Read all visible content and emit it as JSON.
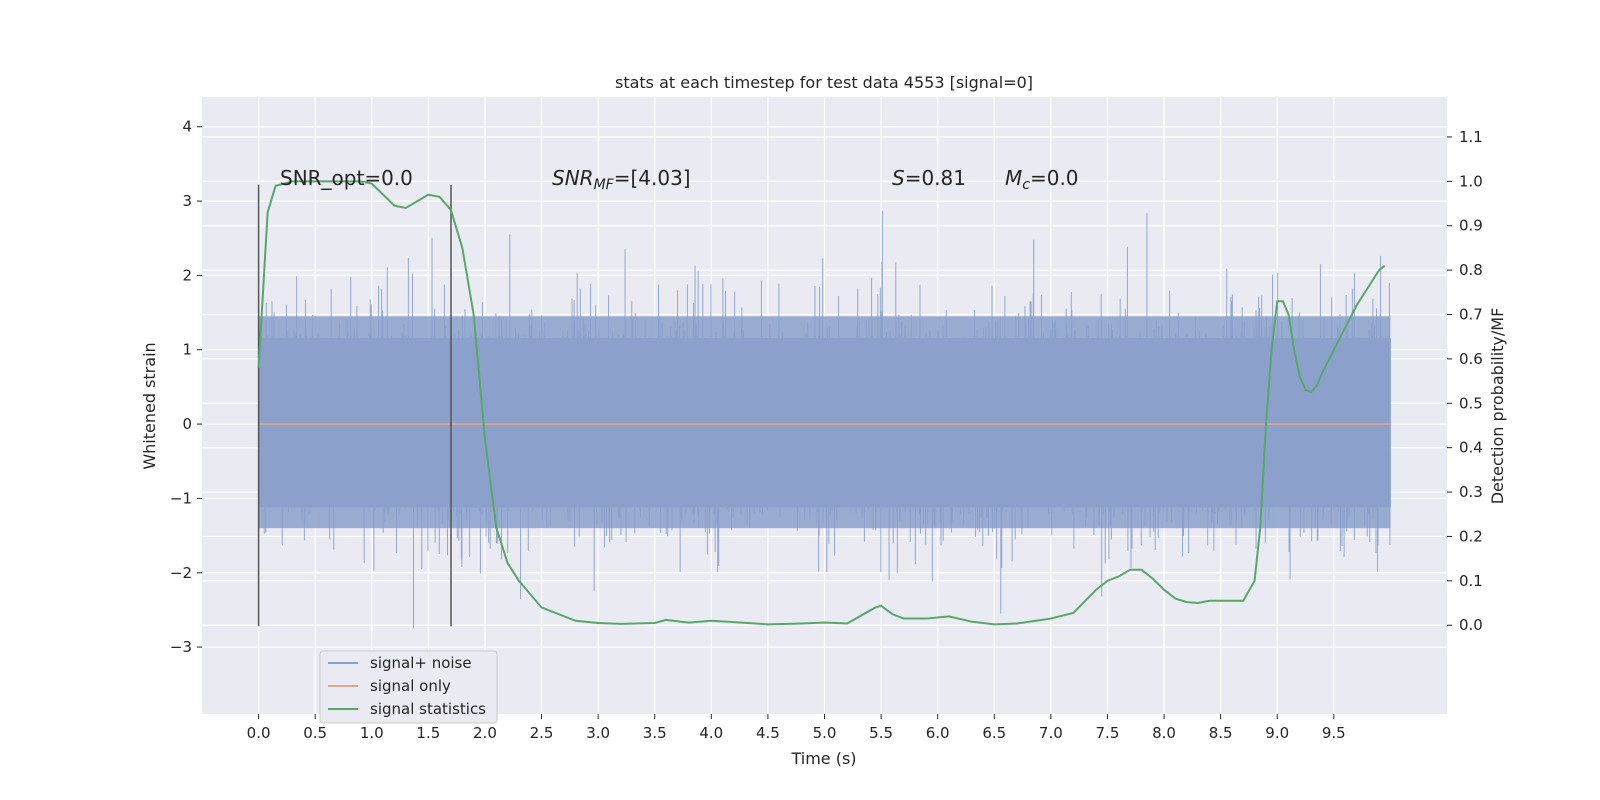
{
  "chart_data": {
    "type": "line",
    "title": "stats at each timestep for test data 4553 [signal=0]",
    "xlabel": "Time (s)",
    "ylabel": "Whitened strain",
    "ylabel_right": "Detection probability/MF",
    "xlim": [
      -0.5,
      10.5
    ],
    "ylim": [
      -3.9,
      4.4
    ],
    "ylim_right": [
      -0.2,
      1.19
    ],
    "x_ticks": [
      0.0,
      0.5,
      1.0,
      1.5,
      2.0,
      2.5,
      3.0,
      3.5,
      4.0,
      4.5,
      5.0,
      5.5,
      6.0,
      6.5,
      7.0,
      7.5,
      8.0,
      8.5,
      9.0,
      9.5
    ],
    "x_tick_labels": [
      "0.0",
      "0.5",
      "1.0",
      "1.5",
      "2.0",
      "2.5",
      "3.0",
      "3.5",
      "4.0",
      "4.5",
      "5.0",
      "5.5",
      "6.0",
      "6.5",
      "7.0",
      "7.5",
      "8.0",
      "8.5",
      "9.0",
      "9.5"
    ],
    "y_ticks": [
      4,
      3,
      2,
      1,
      0,
      -1,
      -2,
      -3
    ],
    "y_tick_labels": [
      "4",
      "3",
      "2",
      "1",
      "0",
      "−1",
      "−2",
      "−3"
    ],
    "y_right_ticks": [
      1.1,
      1.0,
      0.9,
      0.8,
      0.7,
      0.6,
      0.5,
      0.4,
      0.3,
      0.2,
      0.1,
      0.0
    ],
    "y_right_tick_labels": [
      "1.1",
      "1.0",
      "0.9",
      "0.8",
      "0.7",
      "0.6",
      "0.5",
      "0.4",
      "0.3",
      "0.2",
      "0.1",
      "0.0"
    ],
    "grid": true,
    "legend_position": "lower-left",
    "annotations": [
      {
        "text": "SNR_opt=0.0",
        "x": 0.2,
        "y": 3.2
      },
      {
        "text_main": "SNR",
        "text_sub": "MF",
        "text_rest": "=[4.03]",
        "x": 2.6,
        "y": 3.2
      },
      {
        "text_main": "S",
        "text_rest": "=0.81",
        "x": 5.6,
        "y": 3.2
      },
      {
        "text_main": "M",
        "text_sub": "c",
        "text_rest": "=0.0",
        "x": 6.6,
        "y": 3.2
      }
    ],
    "vertical_markers": [
      {
        "x": 0.0,
        "y_min": -2.72,
        "y_max": 3.22
      },
      {
        "x": 1.7,
        "y_min": -2.72,
        "y_max": 3.22
      }
    ],
    "noise_band": {
      "x_start": 0.0,
      "x_end": 10.0,
      "core_low": -1.4,
      "core_high": 1.45
    },
    "series": [
      {
        "name": "signal+ noise",
        "color": "#8aa0cb",
        "values_note": ""
      },
      {
        "name": "signal only",
        "color": "#e0a58d",
        "x": [
          0.0,
          10.0
        ],
        "y": [
          0.0,
          0.0
        ]
      },
      {
        "name": "signal statistics",
        "color": "#55a868",
        "axis": "right",
        "x": [
          0.0,
          0.08,
          0.15,
          0.3,
          0.5,
          0.7,
          0.9,
          1.0,
          1.1,
          1.2,
          1.3,
          1.4,
          1.5,
          1.6,
          1.7,
          1.8,
          1.9,
          2.0,
          2.1,
          2.2,
          2.3,
          2.5,
          2.8,
          3.0,
          3.2,
          3.5,
          3.6,
          3.8,
          4.0,
          4.2,
          4.5,
          4.8,
          5.0,
          5.2,
          5.45,
          5.5,
          5.6,
          5.7,
          5.9,
          6.1,
          6.3,
          6.5,
          6.7,
          7.0,
          7.2,
          7.4,
          7.5,
          7.6,
          7.7,
          7.8,
          7.9,
          8.0,
          8.1,
          8.2,
          8.3,
          8.4,
          8.5,
          8.7,
          8.8,
          8.85,
          8.9,
          8.95,
          9.0,
          9.05,
          9.1,
          9.15,
          9.2,
          9.25,
          9.3,
          9.35,
          9.4,
          9.5,
          9.6,
          9.7,
          9.8,
          9.9,
          9.95
        ],
        "y": [
          0.58,
          0.93,
          0.99,
          1.0,
          1.0,
          1.0,
          1.0,
          0.995,
          0.97,
          0.945,
          0.94,
          0.955,
          0.97,
          0.965,
          0.935,
          0.85,
          0.7,
          0.42,
          0.22,
          0.14,
          0.1,
          0.04,
          0.01,
          0.005,
          0.003,
          0.005,
          0.012,
          0.006,
          0.01,
          0.007,
          0.002,
          0.004,
          0.006,
          0.004,
          0.04,
          0.044,
          0.025,
          0.015,
          0.015,
          0.02,
          0.008,
          0.002,
          0.004,
          0.015,
          0.028,
          0.08,
          0.1,
          0.11,
          0.125,
          0.125,
          0.105,
          0.08,
          0.06,
          0.052,
          0.05,
          0.055,
          0.055,
          0.055,
          0.1,
          0.22,
          0.45,
          0.62,
          0.73,
          0.73,
          0.7,
          0.62,
          0.56,
          0.53,
          0.525,
          0.54,
          0.57,
          0.62,
          0.67,
          0.72,
          0.76,
          0.8,
          0.81
        ]
      }
    ]
  }
}
